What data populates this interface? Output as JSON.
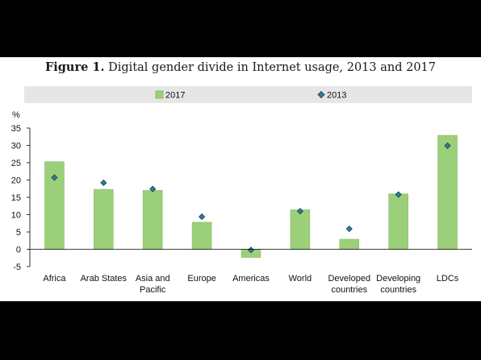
{
  "figure": {
    "title_bold": "Figure 1.",
    "title_rest": "Digital gender divide in Internet usage, 2013 and 2017"
  },
  "colors": {
    "bar_fill": "#9bcf7a",
    "bar_stroke": "#8cbf6c",
    "marker_fill": "#2f7f98",
    "marker_stroke": "#1b3d4a",
    "legend_band": "#e6e6e6"
  },
  "chart_data": {
    "type": "bar",
    "ylabel": "%",
    "ylim": [
      -5,
      35
    ],
    "yticks": [
      -5,
      0,
      5,
      10,
      15,
      20,
      25,
      30,
      35
    ],
    "grid": false,
    "legend_placement": "top",
    "categories": [
      [
        "Africa"
      ],
      [
        "Arab States"
      ],
      [
        "Asia and",
        "Pacific"
      ],
      [
        "Europe"
      ],
      [
        "Americas"
      ],
      [
        "World"
      ],
      [
        "Developed",
        "countries"
      ],
      [
        "Developing",
        "countries"
      ],
      [
        "LDCs"
      ]
    ],
    "series": [
      {
        "name": "2017",
        "kind": "bar",
        "values": [
          25.3,
          17.3,
          17.0,
          7.8,
          -2.4,
          11.4,
          2.9,
          16.0,
          32.9
        ]
      },
      {
        "name": "2013",
        "kind": "marker",
        "values": [
          20.7,
          19.2,
          17.4,
          9.4,
          -0.2,
          11.0,
          5.9,
          15.8,
          29.9
        ]
      }
    ]
  }
}
